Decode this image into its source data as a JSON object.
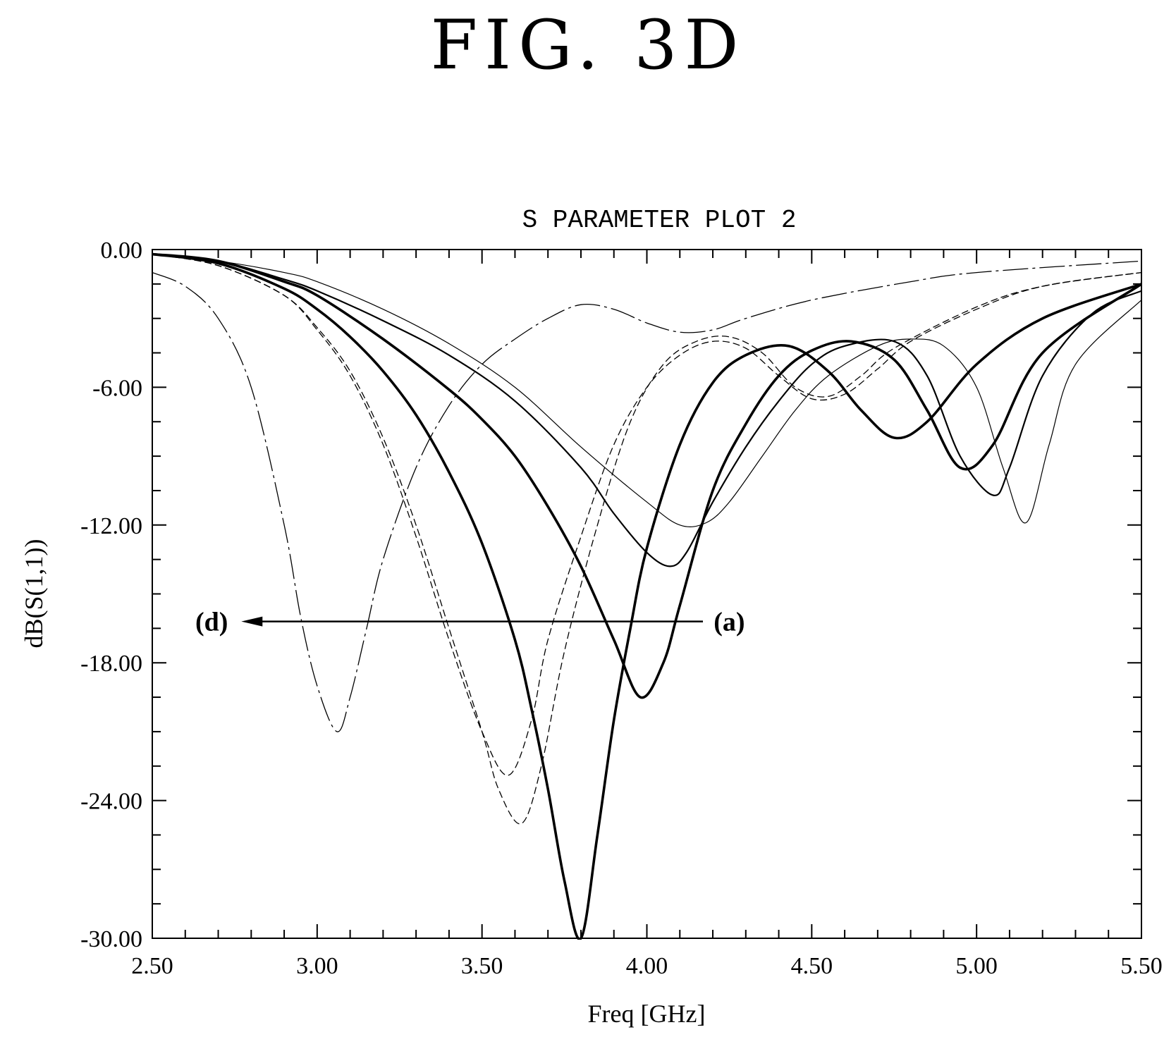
{
  "figure_label": "FIG. 3D",
  "chart_data": {
    "type": "line",
    "title": "S PARAMETER PLOT 2",
    "xlabel": "Freq [GHz]",
    "ylabel": "dB(S(1,1))",
    "xlim": [
      2.5,
      5.5
    ],
    "ylim": [
      -30,
      0
    ],
    "x_ticks": [
      2.5,
      3.0,
      3.5,
      4.0,
      4.5,
      5.0,
      5.5
    ],
    "x_tick_labels": [
      "2.50",
      "3.00",
      "3.50",
      "4.00",
      "4.50",
      "5.00",
      "5.50"
    ],
    "y_ticks": [
      0,
      -6,
      -12,
      -18,
      -24,
      -30
    ],
    "y_tick_labels": [
      "0.00",
      "-6.00",
      "-12.00",
      "-18.00",
      "-24.00",
      "-30.00"
    ],
    "grid": false,
    "annotations": [
      {
        "text": "(a)",
        "x": 4.25,
        "y": -16.2
      },
      {
        "text": "(d)",
        "x": 2.68,
        "y": -16.2
      },
      {
        "type": "arrow",
        "from": [
          4.17,
          -16.2
        ],
        "to": [
          2.77,
          -16.2
        ]
      }
    ],
    "series": [
      {
        "style": "thin-dashdot",
        "x": [
          2.5,
          2.6,
          2.7,
          2.8,
          2.9,
          2.95,
          3.0,
          3.06,
          3.1,
          3.15,
          3.2,
          3.3,
          3.4,
          3.5,
          3.6,
          3.7,
          3.8,
          3.9,
          4.0,
          4.1,
          4.2,
          4.3,
          4.5,
          4.8,
          5.0,
          5.5
        ],
        "y": [
          -1.0,
          -1.6,
          -3.0,
          -6.0,
          -12.0,
          -16.0,
          -19.0,
          -21.0,
          -19.5,
          -16.5,
          -13.5,
          -9.5,
          -6.8,
          -5.0,
          -3.9,
          -3.0,
          -2.4,
          -2.6,
          -3.2,
          -3.6,
          -3.5,
          -3.0,
          -2.2,
          -1.4,
          -1.0,
          -0.5
        ]
      },
      {
        "style": "dashed",
        "x": [
          2.5,
          2.7,
          2.9,
          3.0,
          3.1,
          3.2,
          3.3,
          3.4,
          3.5,
          3.58,
          3.65,
          3.7,
          3.8,
          3.9,
          4.0,
          4.1,
          4.2,
          4.3,
          4.4,
          4.5,
          4.6,
          4.7,
          4.8,
          5.0,
          5.2,
          5.5
        ],
        "y": [
          -0.2,
          -0.7,
          -2.0,
          -3.5,
          -5.5,
          -8.5,
          -12.5,
          -17.0,
          -21.0,
          -22.9,
          -20.5,
          -17.0,
          -12.5,
          -8.5,
          -6.0,
          -4.6,
          -4.0,
          -4.3,
          -5.5,
          -6.5,
          -6.3,
          -5.2,
          -4.0,
          -2.6,
          -1.6,
          -1.0
        ]
      },
      {
        "style": "dashed",
        "x": [
          2.5,
          2.7,
          2.9,
          3.0,
          3.1,
          3.2,
          3.3,
          3.4,
          3.5,
          3.55,
          3.62,
          3.68,
          3.75,
          3.85,
          3.95,
          4.05,
          4.15,
          4.25,
          4.35,
          4.45,
          4.55,
          4.65,
          4.75,
          5.0,
          5.2,
          5.5
        ],
        "y": [
          -0.2,
          -0.7,
          -2.0,
          -3.4,
          -5.3,
          -8.2,
          -12.0,
          -16.5,
          -21.0,
          -23.5,
          -25.0,
          -22.5,
          -17.5,
          -12.0,
          -7.5,
          -5.0,
          -4.0,
          -3.8,
          -4.5,
          -6.0,
          -6.4,
          -5.5,
          -4.3,
          -2.5,
          -1.6,
          -1.0
        ]
      },
      {
        "style": "thick",
        "x": [
          2.5,
          2.7,
          2.9,
          3.0,
          3.1,
          3.2,
          3.3,
          3.4,
          3.5,
          3.6,
          3.65,
          3.7,
          3.75,
          3.8,
          3.85,
          3.9,
          3.95,
          4.0,
          4.1,
          4.2,
          4.3,
          4.43,
          4.55,
          4.65,
          4.75,
          4.85,
          5.0,
          5.2,
          5.5
        ],
        "y": [
          -0.2,
          -0.6,
          -1.7,
          -2.6,
          -3.8,
          -5.3,
          -7.2,
          -9.7,
          -12.8,
          -17.0,
          -20.0,
          -23.5,
          -27.5,
          -30.0,
          -25.5,
          -20.5,
          -16.5,
          -13.0,
          -8.5,
          -5.8,
          -4.6,
          -4.2,
          -5.3,
          -7.0,
          -8.2,
          -7.5,
          -5.0,
          -3.0,
          -1.5
        ]
      },
      {
        "style": "thick",
        "x": [
          2.5,
          2.7,
          2.9,
          3.0,
          3.2,
          3.4,
          3.5,
          3.6,
          3.7,
          3.8,
          3.9,
          3.98,
          4.05,
          4.1,
          4.2,
          4.3,
          4.4,
          4.5,
          4.62,
          4.75,
          4.85,
          4.95,
          5.05,
          5.2,
          5.5
        ],
        "y": [
          -0.2,
          -0.5,
          -1.4,
          -2.0,
          -3.9,
          -6.1,
          -7.4,
          -9.0,
          -11.2,
          -13.8,
          -17.0,
          -19.5,
          -18.0,
          -15.5,
          -10.5,
          -7.6,
          -5.5,
          -4.4,
          -4.0,
          -4.8,
          -7.0,
          -9.5,
          -8.5,
          -4.5,
          -1.5
        ]
      },
      {
        "style": "medium",
        "x": [
          2.5,
          2.7,
          2.9,
          3.0,
          3.2,
          3.4,
          3.6,
          3.8,
          3.9,
          4.0,
          4.07,
          4.12,
          4.2,
          4.3,
          4.4,
          4.5,
          4.6,
          4.75,
          4.85,
          4.95,
          5.05,
          5.1,
          5.2,
          5.35,
          5.5
        ],
        "y": [
          -0.2,
          -0.5,
          -1.3,
          -1.8,
          -3.1,
          -4.6,
          -6.6,
          -9.5,
          -11.5,
          -13.2,
          -13.8,
          -13.2,
          -11.0,
          -8.6,
          -6.6,
          -5.0,
          -4.2,
          -4.0,
          -5.5,
          -9.0,
          -10.7,
          -9.5,
          -5.5,
          -2.8,
          -1.8
        ]
      },
      {
        "style": "thin",
        "x": [
          2.5,
          2.7,
          2.9,
          3.0,
          3.2,
          3.4,
          3.6,
          3.8,
          4.0,
          4.1,
          4.18,
          4.25,
          4.35,
          4.45,
          4.55,
          4.7,
          4.8,
          4.9,
          5.0,
          5.08,
          5.15,
          5.22,
          5.3,
          5.5
        ],
        "y": [
          -0.2,
          -0.5,
          -1.0,
          -1.4,
          -2.6,
          -4.1,
          -6.0,
          -8.6,
          -11.0,
          -12.0,
          -11.9,
          -11.0,
          -9.0,
          -7.0,
          -5.5,
          -4.2,
          -3.9,
          -4.2,
          -6.0,
          -9.5,
          -11.9,
          -8.5,
          -5.0,
          -2.2
        ]
      }
    ]
  }
}
